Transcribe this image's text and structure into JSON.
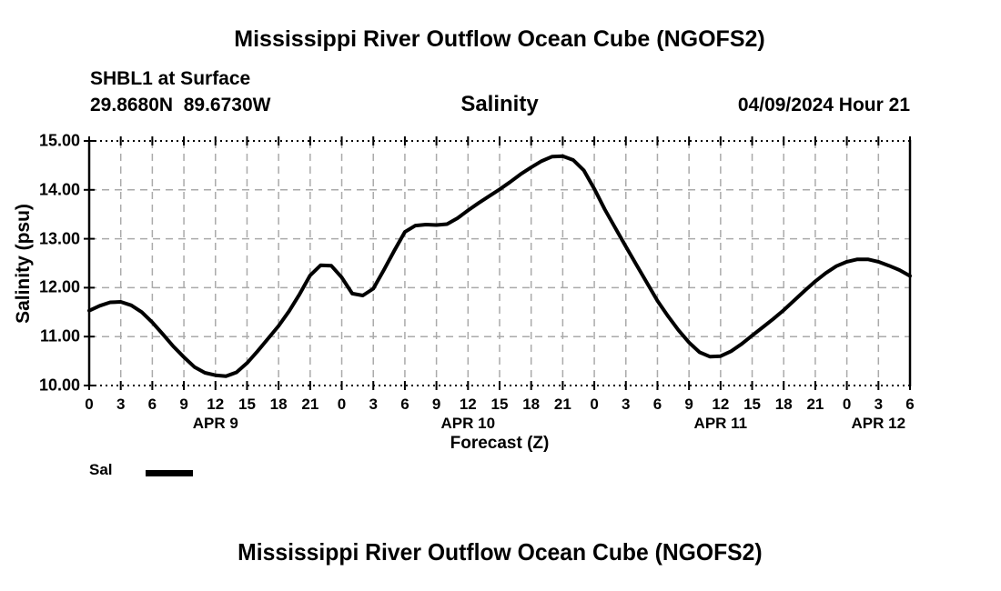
{
  "page": {
    "background": "#ffffff",
    "text_color": "#000000"
  },
  "header": {
    "title": "Mississippi River Outflow Ocean Cube (NGOFS2)",
    "station_line1": "SHBL1 at Surface",
    "station_line2": "29.8680N  89.6730W",
    "subtitle": "Salinity",
    "datetime": "04/09/2024 Hour 21"
  },
  "footer": {
    "title": "Mississippi River Outflow Ocean Cube (NGOFS2)"
  },
  "legend": {
    "label": "Sal",
    "swatch_color": "#000000"
  },
  "chart_data": {
    "type": "line",
    "title": "Salinity",
    "xlabel": "Forecast (Z)",
    "ylabel": "Salinity (psu)",
    "ylim": [
      10,
      15
    ],
    "xlim_hours": [
      0,
      78
    ],
    "grid": true,
    "legend_position": "bottom-left",
    "colors": {
      "line": "#000000",
      "grid": "#aaaaaa",
      "border": "#000000"
    },
    "y_ticks": [
      {
        "value": 15,
        "label": "15.00"
      },
      {
        "value": 14,
        "label": "14.00"
      },
      {
        "value": 13,
        "label": "13.00"
      },
      {
        "value": 12,
        "label": "12.00"
      },
      {
        "value": 11,
        "label": "11.00"
      },
      {
        "value": 10,
        "label": "10.00"
      }
    ],
    "x_ticks": [
      {
        "hour": 0,
        "label": "0"
      },
      {
        "hour": 3,
        "label": "3"
      },
      {
        "hour": 6,
        "label": "6"
      },
      {
        "hour": 9,
        "label": "9"
      },
      {
        "hour": 12,
        "label": "12"
      },
      {
        "hour": 15,
        "label": "15"
      },
      {
        "hour": 18,
        "label": "18"
      },
      {
        "hour": 21,
        "label": "21"
      },
      {
        "hour": 24,
        "label": "0"
      },
      {
        "hour": 27,
        "label": "3"
      },
      {
        "hour": 30,
        "label": "6"
      },
      {
        "hour": 33,
        "label": "9"
      },
      {
        "hour": 36,
        "label": "12"
      },
      {
        "hour": 39,
        "label": "15"
      },
      {
        "hour": 42,
        "label": "18"
      },
      {
        "hour": 45,
        "label": "21"
      },
      {
        "hour": 48,
        "label": "0"
      },
      {
        "hour": 51,
        "label": "3"
      },
      {
        "hour": 54,
        "label": "6"
      },
      {
        "hour": 57,
        "label": "9"
      },
      {
        "hour": 60,
        "label": "12"
      },
      {
        "hour": 63,
        "label": "15"
      },
      {
        "hour": 66,
        "label": "18"
      },
      {
        "hour": 69,
        "label": "21"
      },
      {
        "hour": 72,
        "label": "0"
      },
      {
        "hour": 75,
        "label": "3"
      },
      {
        "hour": 78,
        "label": "6"
      }
    ],
    "day_labels": [
      {
        "hour": 12,
        "label": "APR 9"
      },
      {
        "hour": 36,
        "label": "APR 10"
      },
      {
        "hour": 60,
        "label": "APR 11"
      },
      {
        "hour": 75,
        "label": "APR 12"
      }
    ],
    "series": [
      {
        "name": "Sal",
        "color": "#000000",
        "hours": [
          0,
          1,
          2,
          3,
          4,
          5,
          6,
          7,
          8,
          9,
          10,
          11,
          12,
          13,
          14,
          15,
          16,
          17,
          18,
          19,
          20,
          21,
          22,
          23,
          24,
          25,
          26,
          27,
          28,
          29,
          30,
          31,
          32,
          33,
          34,
          35,
          36,
          37,
          38,
          39,
          40,
          41,
          42,
          43,
          44,
          45,
          46,
          47,
          48,
          49,
          50,
          51,
          52,
          53,
          54,
          55,
          56,
          57,
          58,
          59,
          60,
          61,
          62,
          63,
          64,
          65,
          66,
          67,
          68,
          69,
          70,
          71,
          72,
          73,
          74,
          75,
          76,
          77,
          78
        ],
        "values": [
          11.53,
          11.63,
          11.7,
          11.71,
          11.64,
          11.5,
          11.29,
          11.05,
          10.8,
          10.58,
          10.38,
          10.26,
          10.21,
          10.19,
          10.27,
          10.46,
          10.7,
          10.96,
          11.22,
          11.52,
          11.87,
          12.25,
          12.46,
          12.45,
          12.21,
          11.88,
          11.84,
          11.98,
          12.36,
          12.76,
          13.14,
          13.27,
          13.29,
          13.28,
          13.3,
          13.42,
          13.58,
          13.73,
          13.87,
          14.01,
          14.16,
          14.32,
          14.46,
          14.59,
          14.68,
          14.69,
          14.61,
          14.4,
          14.02,
          13.6,
          13.22,
          12.84,
          12.47,
          12.1,
          11.73,
          11.42,
          11.13,
          10.88,
          10.68,
          10.59,
          10.6,
          10.7,
          10.85,
          11.02,
          11.19,
          11.36,
          11.54,
          11.74,
          11.94,
          12.13,
          12.3,
          12.44,
          12.53,
          12.58,
          12.58,
          12.53,
          12.45,
          12.36,
          12.24
        ]
      }
    ]
  }
}
